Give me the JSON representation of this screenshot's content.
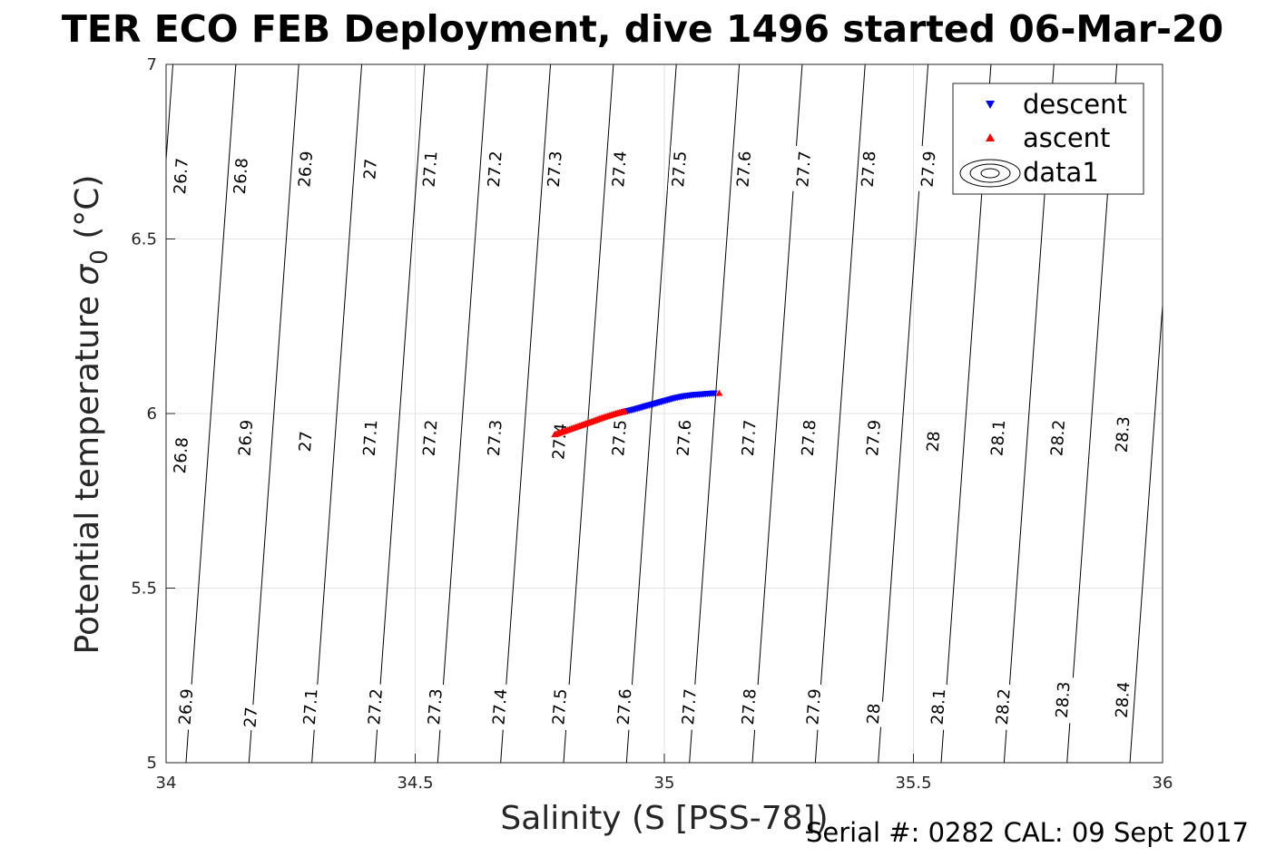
{
  "chart_data": {
    "type": "scatter",
    "title": "TER ECO FEB Deployment, dive 1496 started 06-Mar-20",
    "xlabel": "Salinity (S [PSS-78])",
    "ylabel_main": "Potential temperature ",
    "ylabel_symbol": "σ",
    "ylabel_sub": "0",
    "ylabel_unit": " (°C)",
    "xlim": [
      34,
      36
    ],
    "ylim": [
      5,
      7
    ],
    "x_ticks": [
      "34",
      "34.5",
      "35",
      "35.5",
      "36"
    ],
    "y_ticks": [
      "5",
      "5.5",
      "6",
      "6.5",
      "7"
    ],
    "grid": true,
    "legend_position": "top-right",
    "legend": [
      "descent",
      "ascent",
      "data1"
    ],
    "series": [
      {
        "name": "descent",
        "marker": "triangle-down",
        "color": "#0000ff",
        "x": [
          34.92,
          34.94,
          34.96,
          34.98,
          35.0,
          35.02,
          35.04,
          35.06,
          35.08,
          35.1
        ],
        "y": [
          6.005,
          6.012,
          6.02,
          6.028,
          6.036,
          6.044,
          6.05,
          6.054,
          6.056,
          6.058
        ]
      },
      {
        "name": "ascent",
        "marker": "triangle-up",
        "color": "#ff0000",
        "x": [
          34.78,
          34.8,
          34.82,
          34.84,
          34.86,
          34.88,
          34.9,
          34.92,
          35.11
        ],
        "y": [
          5.94,
          5.95,
          5.96,
          5.97,
          5.98,
          5.99,
          5.999,
          6.006,
          6.058
        ]
      }
    ],
    "contour_levels": [
      "26.7",
      "26.8",
      "26.9",
      "27",
      "27.1",
      "27.2",
      "27.3",
      "27.4",
      "27.5",
      "27.6",
      "27.7",
      "27.8",
      "27.9",
      "28",
      "28.1",
      "28.2",
      "28.3",
      "28.4"
    ],
    "contour_labels": [
      {
        "text": "26.7",
        "x": 34.03,
        "y": 6.68
      },
      {
        "text": "26.8",
        "x": 34.15,
        "y": 6.68
      },
      {
        "text": "26.9",
        "x": 34.28,
        "y": 6.7
      },
      {
        "text": "27",
        "x": 34.41,
        "y": 6.7
      },
      {
        "text": "27.1",
        "x": 34.53,
        "y": 6.7
      },
      {
        "text": "27.2",
        "x": 34.66,
        "y": 6.7
      },
      {
        "text": "27.3",
        "x": 34.78,
        "y": 6.7
      },
      {
        "text": "27.4",
        "x": 34.91,
        "y": 6.7
      },
      {
        "text": "27.5",
        "x": 35.03,
        "y": 6.7
      },
      {
        "text": "27.6",
        "x": 35.16,
        "y": 6.7
      },
      {
        "text": "27.7",
        "x": 35.28,
        "y": 6.7
      },
      {
        "text": "27.8",
        "x": 35.41,
        "y": 6.7
      },
      {
        "text": "27.9",
        "x": 35.53,
        "y": 6.7
      },
      {
        "text": "26.8",
        "x": 34.03,
        "y": 5.88
      },
      {
        "text": "26.9",
        "x": 34.16,
        "y": 5.93
      },
      {
        "text": "27",
        "x": 34.28,
        "y": 5.92
      },
      {
        "text": "27.1",
        "x": 34.41,
        "y": 5.93
      },
      {
        "text": "27.2",
        "x": 34.53,
        "y": 5.93
      },
      {
        "text": "27.3",
        "x": 34.66,
        "y": 5.93
      },
      {
        "text": "27.4",
        "x": 34.79,
        "y": 5.92
      },
      {
        "text": "27.5",
        "x": 34.91,
        "y": 5.93
      },
      {
        "text": "27.6",
        "x": 35.04,
        "y": 5.93
      },
      {
        "text": "27.7",
        "x": 35.17,
        "y": 5.93
      },
      {
        "text": "27.8",
        "x": 35.29,
        "y": 5.93
      },
      {
        "text": "27.9",
        "x": 35.42,
        "y": 5.93
      },
      {
        "text": "28",
        "x": 35.54,
        "y": 5.92
      },
      {
        "text": "28.1",
        "x": 35.67,
        "y": 5.93
      },
      {
        "text": "28.2",
        "x": 35.79,
        "y": 5.93
      },
      {
        "text": "28.3",
        "x": 35.92,
        "y": 5.94
      },
      {
        "text": "26.9",
        "x": 34.04,
        "y": 5.16
      },
      {
        "text": "27",
        "x": 34.17,
        "y": 5.13
      },
      {
        "text": "27.1",
        "x": 34.29,
        "y": 5.16
      },
      {
        "text": "27.2",
        "x": 34.42,
        "y": 5.16
      },
      {
        "text": "27.3",
        "x": 34.54,
        "y": 5.16
      },
      {
        "text": "27.4",
        "x": 34.67,
        "y": 5.16
      },
      {
        "text": "27.5",
        "x": 34.79,
        "y": 5.16
      },
      {
        "text": "27.6",
        "x": 34.92,
        "y": 5.16
      },
      {
        "text": "27.7",
        "x": 35.05,
        "y": 5.16
      },
      {
        "text": "27.8",
        "x": 35.17,
        "y": 5.16
      },
      {
        "text": "27.9",
        "x": 35.3,
        "y": 5.16
      },
      {
        "text": "28",
        "x": 35.42,
        "y": 5.14
      },
      {
        "text": "28.1",
        "x": 35.55,
        "y": 5.16
      },
      {
        "text": "28.2",
        "x": 35.68,
        "y": 5.16
      },
      {
        "text": "28.3",
        "x": 35.8,
        "y": 5.18
      },
      {
        "text": "28.4",
        "x": 35.92,
        "y": 5.18
      }
    ],
    "footer": "Serial #: 0282  CAL: 09 Sept 2017"
  }
}
